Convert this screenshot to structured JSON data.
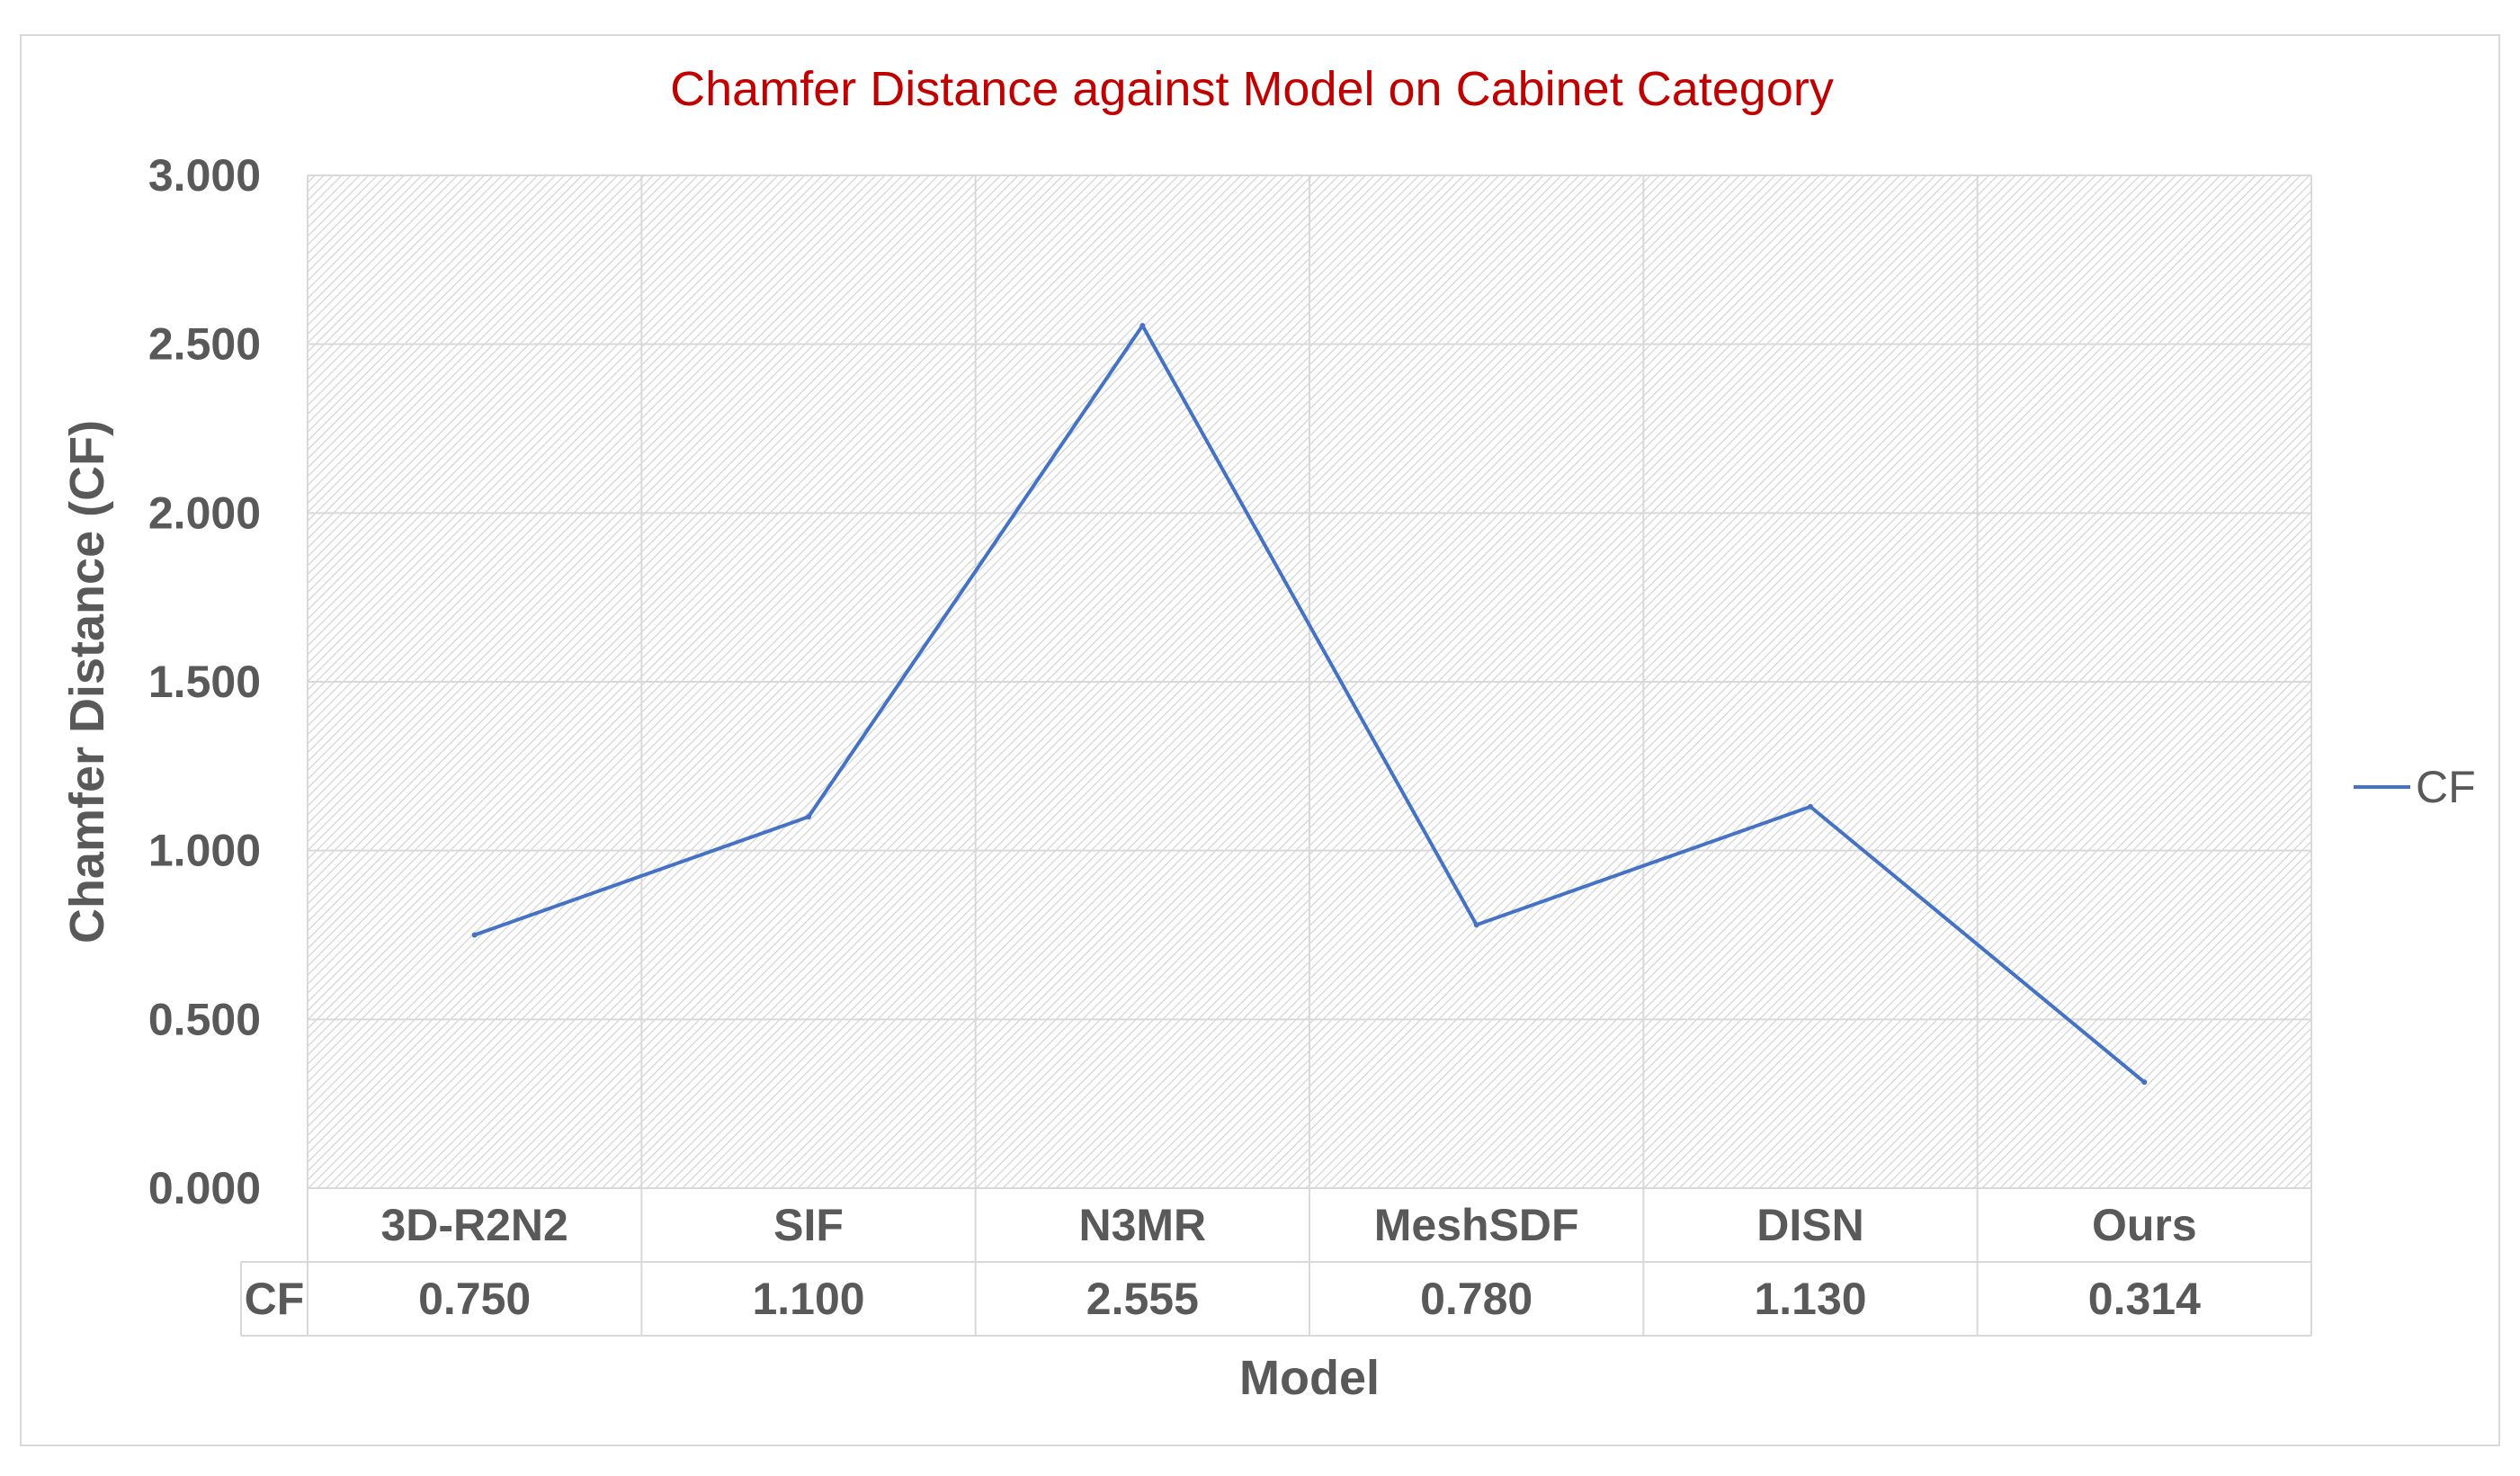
{
  "chart_data": {
    "type": "line",
    "title": "Chamfer Distance against Model on Cabinet Category",
    "xlabel": "Model",
    "ylabel": "Chamfer Distance (CF)",
    "categories": [
      "3D-R2N2",
      "SIF",
      "N3MR",
      "MeshSDF",
      "DISN",
      "Ours"
    ],
    "series": [
      {
        "name": "CF",
        "values": [
          0.75,
          1.1,
          2.555,
          0.78,
          1.13,
          0.314
        ],
        "labels": [
          "0.750",
          "1.100",
          "2.555",
          "0.780",
          "1.130",
          "0.314"
        ]
      }
    ],
    "ylim": [
      0,
      3
    ],
    "yticks": [
      "0.000",
      "0.500",
      "1.000",
      "1.500",
      "2.000",
      "2.500",
      "3.000"
    ],
    "grid": true,
    "data_table": true,
    "legend_position": "right",
    "colors": {
      "title": "#c00000",
      "line": "#4472c4",
      "text": "#595959",
      "grid": "#d9d9d9",
      "hatch": "#d0d0d0"
    }
  }
}
